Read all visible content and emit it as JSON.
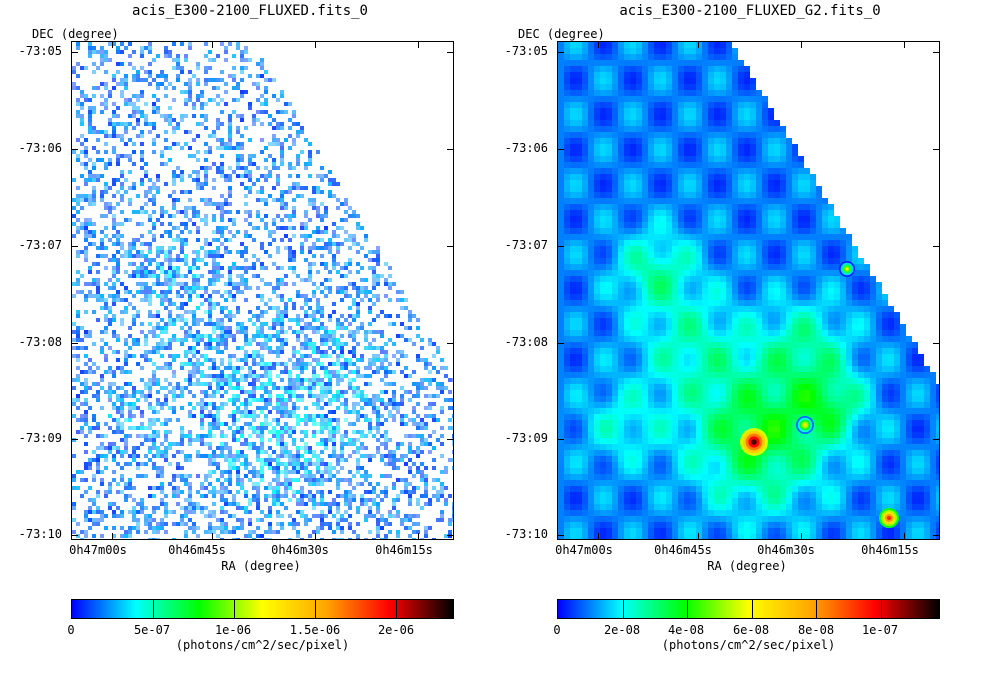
{
  "chart_data": [
    {
      "type": "heatmap",
      "title": "acis_E300-2100_FLUXED.fits_0",
      "ylabel": "DEC (degree)",
      "xlabel": "RA (degree)",
      "y_ticks": [
        "-73:05",
        "-73:06",
        "-73:07",
        "-73:08",
        "-73:09",
        "-73:10"
      ],
      "x_ticks": [
        "0h47m00s",
        "0h46m45s",
        "0h46m30s",
        "0h46m15s"
      ],
      "colorbar": {
        "ticks": [
          "0",
          "5e-07",
          "1e-06",
          "1.5e-06",
          "2e-06"
        ],
        "tick_values": [
          0,
          5e-07,
          1e-06,
          1.5e-06,
          2e-06
        ],
        "max": 2.35e-06,
        "label": "(photons/cm^2/sec/pixel)"
      },
      "rendering": "sparse-pixel"
    },
    {
      "type": "heatmap",
      "title": "acis_E300-2100_FLUXED_G2.fits_0",
      "ylabel": "DEC (degree)",
      "xlabel": "RA (degree)",
      "y_ticks": [
        "-73:05",
        "-73:06",
        "-73:07",
        "-73:08",
        "-73:09",
        "-73:10"
      ],
      "x_ticks": [
        "0h47m00s",
        "0h46m45s",
        "0h46m30s",
        "0h46m15s"
      ],
      "colorbar": {
        "ticks": [
          "0",
          "2e-08",
          "4e-08",
          "6e-08",
          "8e-08",
          "1e-07"
        ],
        "tick_values": [
          0,
          2e-08,
          4e-08,
          6e-08,
          8e-08,
          1e-07
        ],
        "max": 1.18e-07,
        "label": "(photons/cm^2/sec/pixel)"
      },
      "rendering": "smoothed"
    }
  ],
  "colormap": [
    "#0000ff",
    "#00ffff",
    "#00ff00",
    "#ffff00",
    "#ffa500",
    "#ff0000",
    "#000000"
  ]
}
